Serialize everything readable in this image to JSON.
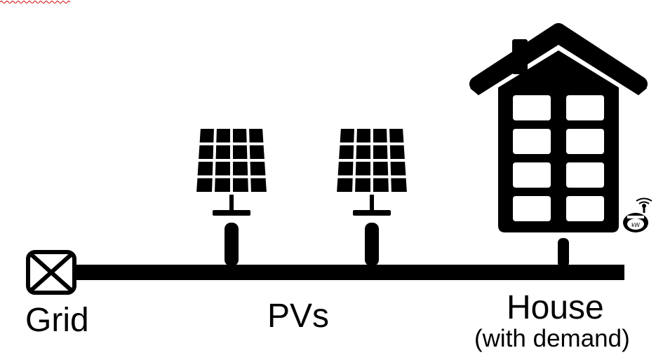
{
  "labels": {
    "grid": "Grid",
    "pvs": "PVs",
    "house": "House",
    "house_note": "(with demand)",
    "meter_unit": "kW"
  },
  "icons": {
    "grid": "grid-connection-icon",
    "pv": "solar-panel-icon",
    "house": "house-icon",
    "meter": "smart-meter-icon"
  },
  "colors": {
    "ink": "#000000",
    "background": "#ffffff",
    "spellcheck_underline": "#cc0000"
  }
}
